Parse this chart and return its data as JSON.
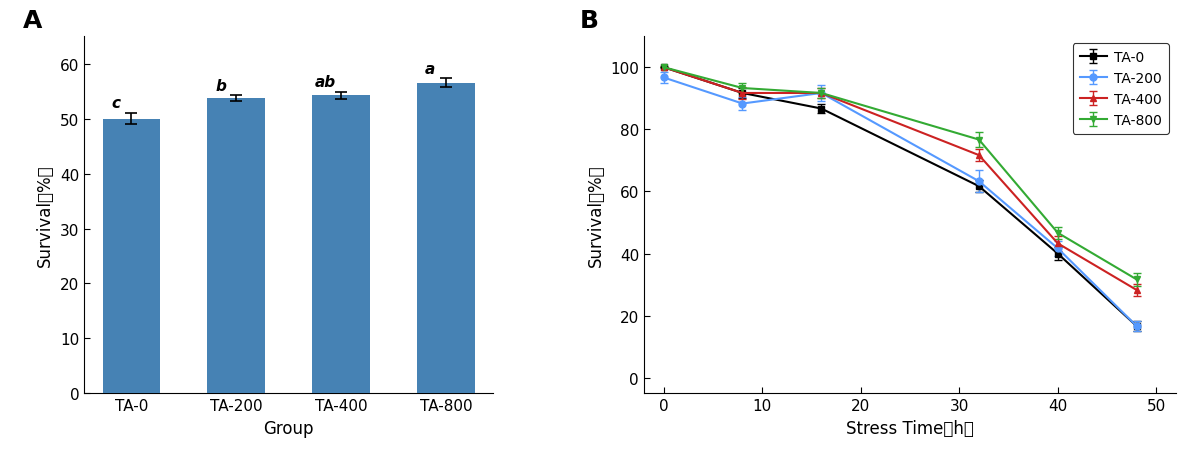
{
  "bar_categories": [
    "TA-0",
    "TA-200",
    "TA-400",
    "TA-800"
  ],
  "bar_values": [
    50.0,
    53.7,
    54.2,
    56.5
  ],
  "bar_errors": [
    1.0,
    0.5,
    0.6,
    0.8
  ],
  "bar_color": "#4682B4",
  "bar_letters": [
    "c",
    "b",
    "ab",
    "a"
  ],
  "bar_ylabel": "Survival（%）",
  "bar_xlabel": "Group",
  "bar_ylim": [
    0,
    65
  ],
  "bar_yticks": [
    0,
    10,
    20,
    30,
    40,
    50,
    60
  ],
  "panel_A_label": "A",
  "panel_B_label": "B",
  "line_x": [
    0,
    8,
    16,
    32,
    40,
    48
  ],
  "line_data": {
    "TA-0": {
      "y": [
        100,
        91.7,
        86.7,
        61.7,
        40.0,
        16.7
      ],
      "yerr": [
        0.0,
        1.5,
        1.5,
        2.0,
        2.0,
        1.5
      ],
      "color": "#000000",
      "marker": "s",
      "linestyle": "-"
    },
    "TA-200": {
      "y": [
        96.7,
        88.3,
        91.7,
        63.3,
        41.7,
        16.7
      ],
      "yerr": [
        1.7,
        2.0,
        2.5,
        3.5,
        2.5,
        1.5
      ],
      "color": "#5599FF",
      "marker": "o",
      "linestyle": "-"
    },
    "TA-400": {
      "y": [
        100,
        91.7,
        91.7,
        71.7,
        43.3,
        28.3
      ],
      "yerr": [
        0.0,
        2.0,
        1.5,
        2.0,
        2.5,
        2.0
      ],
      "color": "#CC2222",
      "marker": "^",
      "linestyle": "-"
    },
    "TA-800": {
      "y": [
        100,
        93.3,
        91.7,
        76.7,
        46.7,
        31.7
      ],
      "yerr": [
        0.0,
        1.5,
        1.5,
        2.5,
        2.0,
        2.0
      ],
      "color": "#33AA33",
      "marker": "v",
      "linestyle": "-"
    }
  },
  "line_ylabel": "Survival（%）",
  "line_xlabel": "Stress Time（h）",
  "line_ylim": [
    -5,
    110
  ],
  "line_yticks": [
    0,
    20,
    40,
    60,
    80,
    100
  ],
  "line_xticks": [
    0,
    10,
    20,
    30,
    40,
    50
  ],
  "legend_order": [
    "TA-0",
    "TA-200",
    "TA-400",
    "TA-800"
  ]
}
